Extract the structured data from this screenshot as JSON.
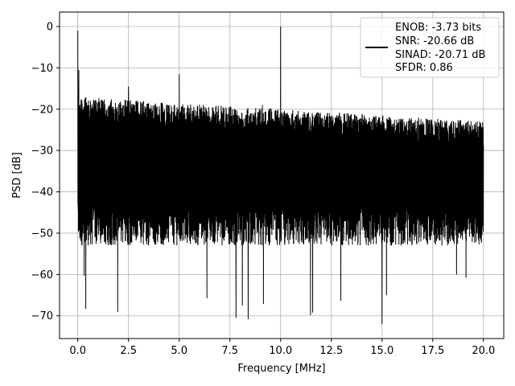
{
  "chart_data": {
    "type": "line",
    "title": "",
    "xlabel": "Frequency [MHz]",
    "ylabel": "PSD [dB]",
    "xlim": [
      -0.9,
      21
    ],
    "ylim": [
      -75.5,
      3.5
    ],
    "xticks": [
      0.0,
      2.5,
      5.0,
      7.5,
      10.0,
      12.5,
      15.0,
      17.5,
      20.0
    ],
    "xtick_labels": [
      "0.0",
      "2.5",
      "5.0",
      "7.5",
      "10.0",
      "12.5",
      "15.0",
      "17.5",
      "20.0"
    ],
    "yticks": [
      0,
      -10,
      -20,
      -30,
      -40,
      -50,
      -60,
      -70
    ],
    "ytick_labels": [
      "0",
      "−10",
      "−20",
      "−30",
      "−40",
      "−50",
      "−60",
      "−70"
    ],
    "grid": true,
    "legend": {
      "placement": "upper-right",
      "entries": [
        "ENOB: -3.73 bits",
        "SNR: -20.66 dB",
        "SINAD: -20.71 dB",
        "SFDR: 0.86"
      ]
    },
    "series": [
      {
        "color": "#000000",
        "x_range": [
          0,
          20
        ],
        "noise_floor": {
          "upper_start": -17,
          "upper_end": -23,
          "lower_typical": -50,
          "lower_min": -72
        },
        "spikes": [
          {
            "x": 0.0,
            "y": -1
          },
          {
            "x": 0.05,
            "y": -10.5
          },
          {
            "x": 2.5,
            "y": -14.5
          },
          {
            "x": 5.0,
            "y": -11.5
          },
          {
            "x": 9.1,
            "y": -19
          },
          {
            "x": 10.0,
            "y": 0
          },
          {
            "x": 7.8,
            "y": -70.5
          },
          {
            "x": 8.4,
            "y": -70.8
          },
          {
            "x": 15.0,
            "y": -72
          }
        ]
      }
    ]
  }
}
